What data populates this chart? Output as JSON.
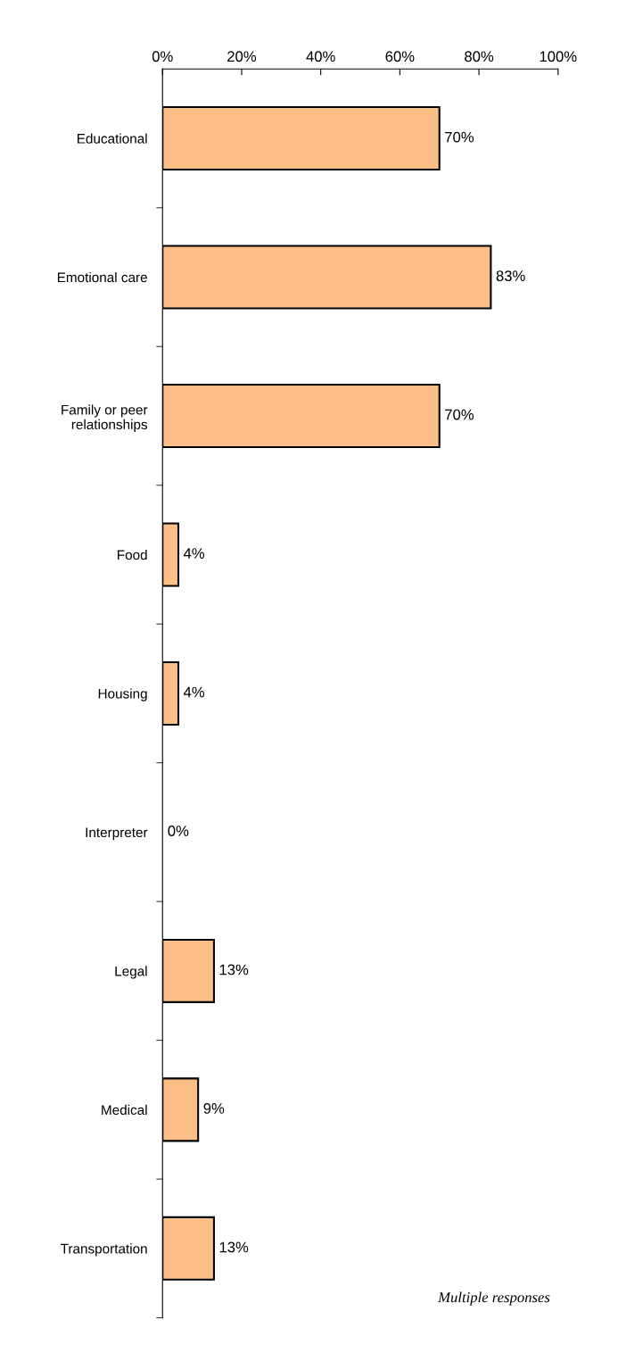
{
  "chart_data": {
    "type": "bar",
    "orientation": "horizontal",
    "categories": [
      "Educational",
      "Emotional care",
      "Family or peer\nrelationships",
      "Food",
      "Housing",
      "Interpreter",
      "Legal",
      "Medical",
      "Transportation"
    ],
    "values": [
      70,
      83,
      70,
      4,
      4,
      0,
      13,
      9,
      13
    ],
    "value_labels": [
      "70%",
      "83%",
      "70%",
      "4%",
      "4%",
      "0%",
      "13%",
      "9%",
      "13%"
    ],
    "color": "#fbbf87",
    "xlim": [
      0,
      100
    ],
    "xticks": [
      {
        "value": 0,
        "label": "0%"
      },
      {
        "value": 20,
        "label": "20%"
      },
      {
        "value": 40,
        "label": "40%"
      },
      {
        "value": 60,
        "label": "60%"
      },
      {
        "value": 80,
        "label": "80%"
      },
      {
        "value": 100,
        "label": "100%"
      }
    ],
    "annotations": [
      "Multiple responses"
    ],
    "grid": false,
    "legend": false
  }
}
